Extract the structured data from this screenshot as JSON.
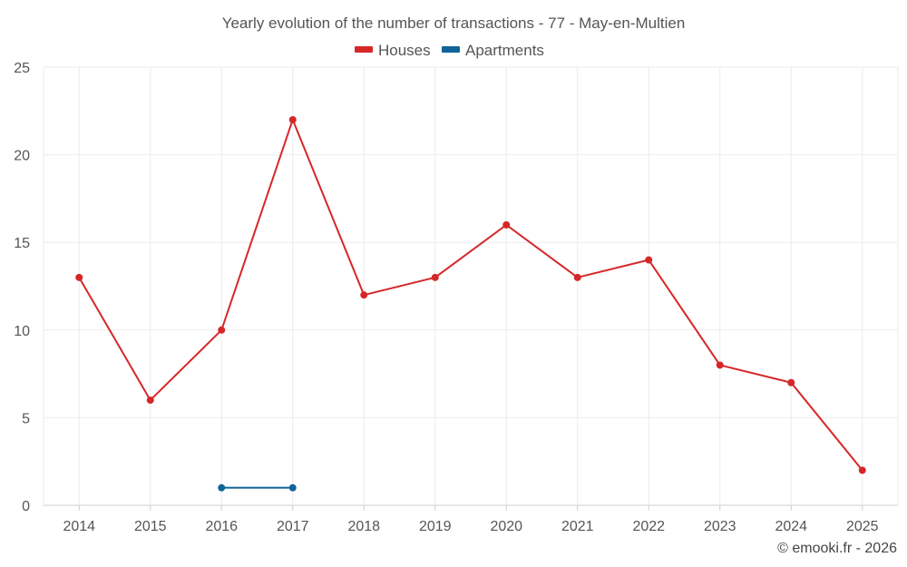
{
  "chart_data": {
    "type": "line",
    "title": "Yearly evolution of the number of transactions - 77 - May-en-Multien",
    "categories": [
      "2014",
      "2015",
      "2016",
      "2017",
      "2018",
      "2019",
      "2020",
      "2021",
      "2022",
      "2023",
      "2024",
      "2025"
    ],
    "series": [
      {
        "name": "Houses",
        "color": "#d62728",
        "values": [
          13,
          6,
          10,
          22,
          12,
          13,
          16,
          13,
          14,
          8,
          7,
          2
        ]
      },
      {
        "name": "Apartments",
        "color": "#0f6499",
        "values": [
          null,
          null,
          1,
          1,
          null,
          null,
          null,
          null,
          null,
          null,
          null,
          null
        ]
      }
    ],
    "ylim": [
      0,
      25
    ],
    "yticks": [
      0,
      5,
      10,
      15,
      20,
      25
    ],
    "xlabel": "",
    "ylabel": "",
    "grid": true,
    "legend": "top-center"
  },
  "credit": "© emooki.fr - 2026"
}
